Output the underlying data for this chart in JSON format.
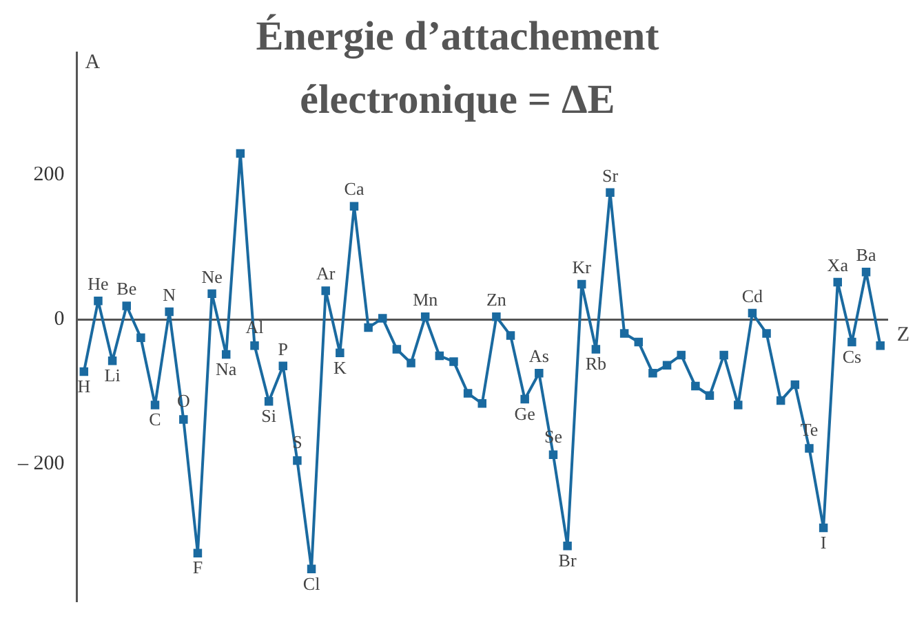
{
  "chart_data": {
    "type": "line",
    "title": "Énergie d’attachement électronique = ΔE",
    "xlabel": "Z",
    "ylabel": "A",
    "categories": [
      "H",
      "He",
      "Li",
      "Be",
      null,
      "C",
      "N",
      "O",
      "F",
      "Ne",
      "Na",
      null,
      "Al",
      "Si",
      "P",
      "S",
      "Cl",
      "Ar",
      "K",
      "Ca",
      null,
      null,
      null,
      null,
      "Mn",
      null,
      null,
      null,
      null,
      "Zn",
      null,
      "Ge",
      "As",
      "Se",
      "Br",
      "Kr",
      "Rb",
      "Sr",
      null,
      null,
      null,
      null,
      null,
      null,
      null,
      null,
      null,
      "Cd",
      null,
      null,
      null,
      "Te",
      "I",
      "Xa",
      "Cs",
      "Ba",
      null
    ],
    "series": [
      {
        "color": "#1a6aa0",
        "values": [
          -72,
          26,
          -57,
          19,
          -25,
          -118,
          11,
          -138,
          -323,
          36,
          -48,
          230,
          -36,
          -113,
          -64,
          -195,
          -345,
          40,
          -46,
          157,
          -11,
          2,
          -41,
          -60,
          4,
          -50,
          -58,
          -102,
          -116,
          4,
          -22,
          -110,
          -74,
          -187,
          -313,
          49,
          -41,
          176,
          -19,
          -31,
          -74,
          -63,
          -49,
          -92,
          -105,
          -49,
          -118,
          9,
          -19,
          -112,
          -90,
          -178,
          -288,
          52,
          -31,
          66,
          -36
        ]
      }
    ],
    "ylim": [
      -390,
      370
    ],
    "yticks": [
      {
        "value": -200,
        "label": "– 200"
      },
      0,
      200
    ],
    "tick_labels": "y",
    "marker": "square",
    "line_style": "solid",
    "grid": false,
    "legend": false
  }
}
